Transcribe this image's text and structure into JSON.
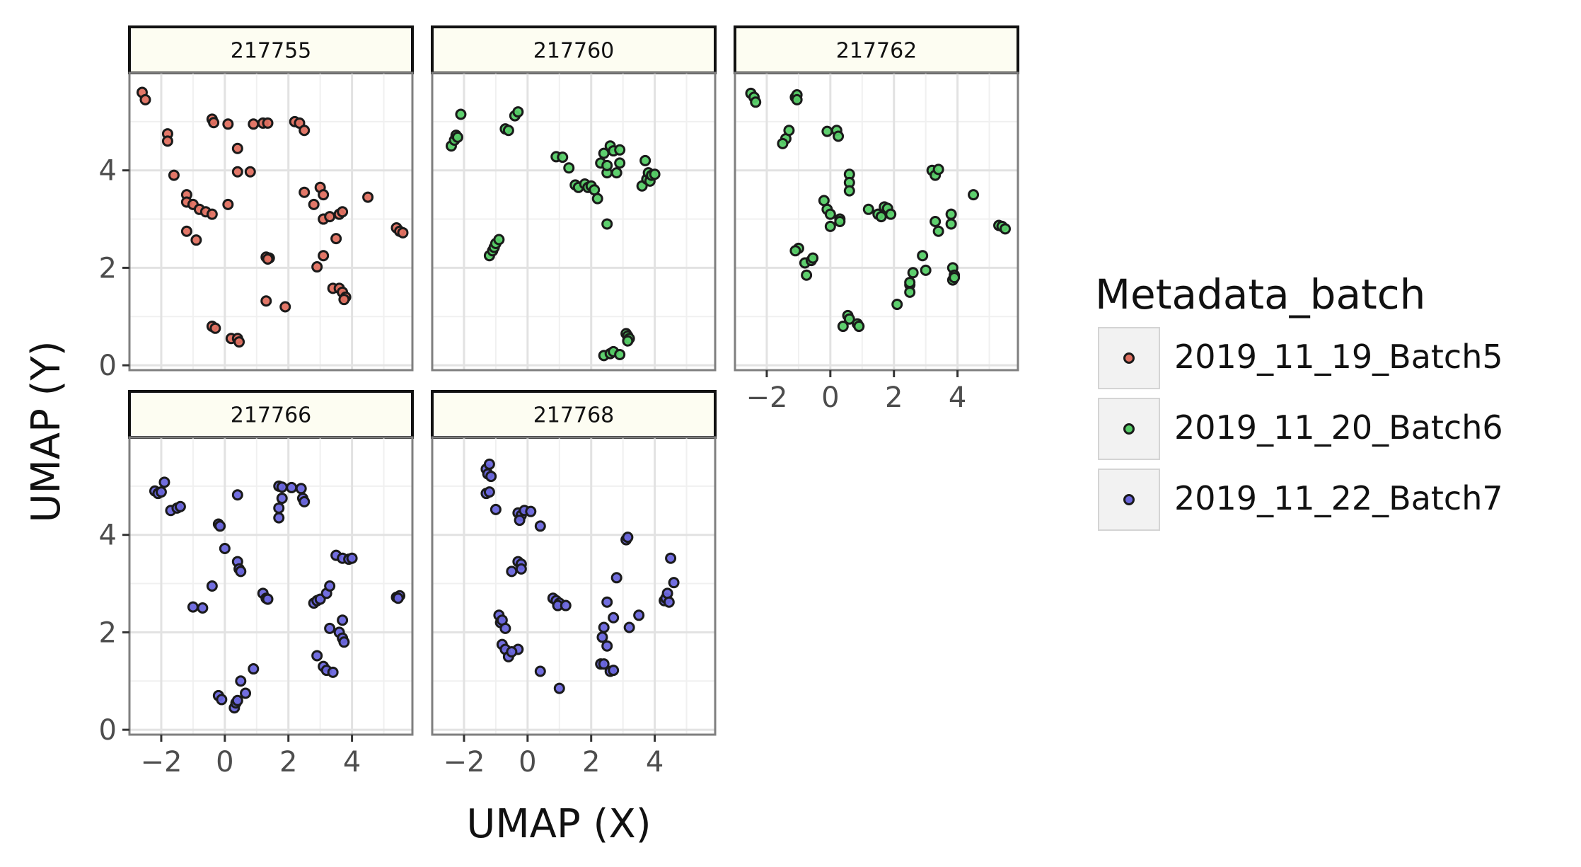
{
  "chart_data": {
    "type": "scatter",
    "xlabel": "UMAP (X)",
    "ylabel": "UMAP (Y)",
    "xlim": [
      -3.0,
      5.9
    ],
    "ylim": [
      -0.1,
      6.0
    ],
    "x_ticks": [
      -2,
      0,
      2,
      4
    ],
    "y_ticks": [
      0,
      2,
      4
    ],
    "x_tick_labels": [
      "−2",
      "0",
      "2",
      "4"
    ],
    "y_tick_labels": [
      "0",
      "2",
      "4"
    ],
    "grid": true,
    "legend_position": "right",
    "legend": {
      "title": "Metadata_batch",
      "entries": [
        {
          "label": "2019_11_19_Batch5",
          "color": "#e07060"
        },
        {
          "label": "2019_11_20_Batch6",
          "color": "#55cc66"
        },
        {
          "label": "2019_11_22_Batch7",
          "color": "#6a66dd"
        }
      ]
    },
    "panels": [
      {
        "title": "217755",
        "batch": "2019_11_19_Batch5",
        "color": "#e07060",
        "points": [
          [
            -2.6,
            5.6
          ],
          [
            -2.5,
            5.45
          ],
          [
            -1.8,
            4.75
          ],
          [
            -1.8,
            4.6
          ],
          [
            -1.6,
            3.9
          ],
          [
            -1.2,
            3.5
          ],
          [
            -1.2,
            3.35
          ],
          [
            -1.0,
            3.3
          ],
          [
            -0.8,
            3.2
          ],
          [
            -0.6,
            3.15
          ],
          [
            -0.4,
            3.1
          ],
          [
            -0.4,
            5.05
          ],
          [
            -0.35,
            4.98
          ],
          [
            0.1,
            3.3
          ],
          [
            0.1,
            4.95
          ],
          [
            0.4,
            4.45
          ],
          [
            0.4,
            3.97
          ],
          [
            0.8,
            3.97
          ],
          [
            0.9,
            4.95
          ],
          [
            1.2,
            4.97
          ],
          [
            1.35,
            4.97
          ],
          [
            2.2,
            5.0
          ],
          [
            2.35,
            4.97
          ],
          [
            2.5,
            4.82
          ],
          [
            2.5,
            3.55
          ],
          [
            2.8,
            3.3
          ],
          [
            3.0,
            3.65
          ],
          [
            3.1,
            3.5
          ],
          [
            3.1,
            3.0
          ],
          [
            3.3,
            3.05
          ],
          [
            3.6,
            3.1
          ],
          [
            3.7,
            3.15
          ],
          [
            4.5,
            3.45
          ],
          [
            5.4,
            2.82
          ],
          [
            5.5,
            2.75
          ],
          [
            5.6,
            2.72
          ],
          [
            -1.2,
            2.75
          ],
          [
            -0.9,
            2.57
          ],
          [
            1.3,
            2.22
          ],
          [
            1.4,
            2.2
          ],
          [
            1.35,
            2.18
          ],
          [
            1.3,
            1.32
          ],
          [
            1.9,
            1.2
          ],
          [
            2.9,
            2.02
          ],
          [
            3.1,
            2.25
          ],
          [
            3.5,
            2.6
          ],
          [
            3.4,
            1.58
          ],
          [
            3.6,
            1.58
          ],
          [
            3.7,
            1.5
          ],
          [
            3.8,
            1.4
          ],
          [
            3.75,
            1.35
          ],
          [
            -0.4,
            0.8
          ],
          [
            -0.3,
            0.76
          ],
          [
            0.2,
            0.55
          ],
          [
            0.4,
            0.55
          ],
          [
            0.45,
            0.48
          ]
        ]
      },
      {
        "title": "217760",
        "batch": "2019_11_20_Batch6",
        "color": "#55cc66",
        "points": [
          [
            -2.4,
            4.5
          ],
          [
            -2.3,
            4.62
          ],
          [
            -2.25,
            4.72
          ],
          [
            -2.2,
            4.68
          ],
          [
            -2.1,
            5.15
          ],
          [
            -1.2,
            2.25
          ],
          [
            -1.1,
            2.35
          ],
          [
            -1.05,
            2.42
          ],
          [
            -1.0,
            2.5
          ],
          [
            -0.9,
            2.58
          ],
          [
            -0.7,
            4.85
          ],
          [
            -0.6,
            4.82
          ],
          [
            -0.4,
            5.12
          ],
          [
            -0.3,
            5.2
          ],
          [
            0.9,
            4.28
          ],
          [
            1.1,
            4.27
          ],
          [
            1.3,
            4.05
          ],
          [
            1.5,
            3.7
          ],
          [
            1.6,
            3.65
          ],
          [
            1.8,
            3.72
          ],
          [
            1.9,
            3.65
          ],
          [
            2.0,
            3.68
          ],
          [
            2.1,
            3.6
          ],
          [
            2.2,
            3.42
          ],
          [
            2.3,
            4.15
          ],
          [
            2.4,
            4.35
          ],
          [
            2.5,
            3.95
          ],
          [
            2.5,
            4.1
          ],
          [
            2.6,
            4.5
          ],
          [
            2.7,
            4.4
          ],
          [
            2.8,
            3.95
          ],
          [
            2.9,
            4.15
          ],
          [
            2.9,
            4.42
          ],
          [
            2.5,
            2.9
          ],
          [
            3.6,
            3.68
          ],
          [
            3.7,
            4.2
          ],
          [
            3.75,
            3.82
          ],
          [
            3.8,
            3.95
          ],
          [
            3.85,
            3.78
          ],
          [
            3.9,
            3.9
          ],
          [
            4.0,
            3.92
          ],
          [
            2.4,
            0.2
          ],
          [
            2.6,
            0.24
          ],
          [
            2.7,
            0.28
          ],
          [
            2.9,
            0.22
          ],
          [
            3.1,
            0.65
          ],
          [
            3.15,
            0.6
          ],
          [
            3.2,
            0.55
          ],
          [
            3.15,
            0.5
          ]
        ]
      },
      {
        "title": "217762",
        "batch": "2019_11_20_Batch6",
        "color": "#55cc66",
        "points": [
          [
            -2.5,
            5.58
          ],
          [
            -2.4,
            5.5
          ],
          [
            -2.35,
            5.4
          ],
          [
            -1.4,
            4.65
          ],
          [
            -1.5,
            4.55
          ],
          [
            -1.3,
            4.82
          ],
          [
            -1.1,
            5.5
          ],
          [
            -1.05,
            5.55
          ],
          [
            -1.05,
            5.45
          ],
          [
            -0.1,
            4.8
          ],
          [
            0.2,
            4.82
          ],
          [
            0.25,
            4.7
          ],
          [
            -0.2,
            3.38
          ],
          [
            -0.1,
            3.2
          ],
          [
            0.0,
            3.1
          ],
          [
            0.3,
            3.0
          ],
          [
            0.3,
            2.95
          ],
          [
            0.0,
            2.85
          ],
          [
            0.6,
            3.92
          ],
          [
            0.6,
            3.75
          ],
          [
            0.6,
            3.58
          ],
          [
            -1.0,
            2.4
          ],
          [
            -1.1,
            2.35
          ],
          [
            -0.8,
            2.1
          ],
          [
            -0.6,
            2.15
          ],
          [
            -0.55,
            2.2
          ],
          [
            -0.75,
            1.85
          ],
          [
            0.4,
            0.8
          ],
          [
            0.55,
            1.02
          ],
          [
            0.6,
            0.95
          ],
          [
            0.85,
            0.85
          ],
          [
            0.9,
            0.8
          ],
          [
            1.2,
            3.2
          ],
          [
            1.5,
            3.1
          ],
          [
            1.6,
            3.05
          ],
          [
            1.7,
            3.25
          ],
          [
            1.8,
            3.22
          ],
          [
            1.9,
            3.1
          ],
          [
            2.1,
            1.25
          ],
          [
            2.5,
            1.65
          ],
          [
            2.5,
            1.7
          ],
          [
            2.5,
            1.5
          ],
          [
            2.6,
            1.9
          ],
          [
            2.9,
            2.25
          ],
          [
            3.0,
            1.95
          ],
          [
            3.2,
            4.0
          ],
          [
            3.3,
            3.9
          ],
          [
            3.4,
            4.02
          ],
          [
            3.3,
            2.95
          ],
          [
            3.4,
            2.75
          ],
          [
            3.8,
            3.1
          ],
          [
            3.8,
            2.9
          ],
          [
            3.85,
            2.0
          ],
          [
            3.9,
            1.85
          ],
          [
            3.85,
            1.75
          ],
          [
            3.9,
            1.8
          ],
          [
            4.5,
            3.5
          ],
          [
            5.3,
            2.87
          ],
          [
            5.4,
            2.85
          ],
          [
            5.5,
            2.8
          ]
        ]
      },
      {
        "title": "217766",
        "batch": "2019_11_22_Batch7",
        "color": "#6a66dd",
        "points": [
          [
            -2.2,
            4.9
          ],
          [
            -2.1,
            4.85
          ],
          [
            -2.0,
            4.88
          ],
          [
            -1.9,
            5.08
          ],
          [
            -1.7,
            4.5
          ],
          [
            -1.5,
            4.55
          ],
          [
            -1.4,
            4.58
          ],
          [
            -0.2,
            4.22
          ],
          [
            -0.15,
            4.18
          ],
          [
            0.0,
            3.72
          ],
          [
            0.4,
            3.45
          ],
          [
            0.45,
            3.3
          ],
          [
            0.5,
            3.25
          ],
          [
            0.4,
            4.82
          ],
          [
            -0.4,
            2.95
          ],
          [
            -1.0,
            2.52
          ],
          [
            -0.7,
            2.5
          ],
          [
            1.2,
            2.8
          ],
          [
            1.3,
            2.7
          ],
          [
            1.35,
            2.68
          ],
          [
            1.7,
            5.0
          ],
          [
            1.8,
            4.98
          ],
          [
            1.7,
            4.55
          ],
          [
            1.7,
            4.35
          ],
          [
            1.8,
            4.75
          ],
          [
            2.1,
            4.97
          ],
          [
            2.4,
            4.95
          ],
          [
            2.45,
            4.75
          ],
          [
            2.5,
            4.68
          ],
          [
            2.8,
            2.6
          ],
          [
            2.9,
            2.65
          ],
          [
            3.0,
            2.68
          ],
          [
            3.2,
            2.8
          ],
          [
            3.3,
            2.95
          ],
          [
            3.3,
            2.08
          ],
          [
            3.5,
            3.58
          ],
          [
            3.7,
            3.52
          ],
          [
            3.9,
            3.5
          ],
          [
            4.0,
            3.52
          ],
          [
            3.7,
            2.25
          ],
          [
            3.6,
            2.0
          ],
          [
            3.7,
            1.88
          ],
          [
            3.75,
            1.8
          ],
          [
            2.9,
            1.52
          ],
          [
            3.1,
            1.3
          ],
          [
            3.2,
            1.22
          ],
          [
            3.4,
            1.18
          ],
          [
            5.4,
            2.72
          ],
          [
            5.5,
            2.75
          ],
          [
            5.45,
            2.7
          ],
          [
            -0.2,
            0.7
          ],
          [
            -0.1,
            0.62
          ],
          [
            0.3,
            0.45
          ],
          [
            0.35,
            0.55
          ],
          [
            0.4,
            0.6
          ],
          [
            0.5,
            1.0
          ],
          [
            0.65,
            0.75
          ],
          [
            0.9,
            1.25
          ]
        ]
      },
      {
        "title": "217768",
        "batch": "2019_11_22_Batch7",
        "color": "#6a66dd",
        "points": [
          [
            -1.3,
            5.35
          ],
          [
            -1.25,
            5.25
          ],
          [
            -1.2,
            5.45
          ],
          [
            -1.15,
            5.2
          ],
          [
            -1.3,
            4.85
          ],
          [
            -1.2,
            4.88
          ],
          [
            -1.0,
            4.52
          ],
          [
            -0.3,
            4.45
          ],
          [
            -0.2,
            4.4
          ],
          [
            -0.25,
            4.3
          ],
          [
            -0.1,
            4.5
          ],
          [
            0.1,
            4.48
          ],
          [
            0.4,
            4.18
          ],
          [
            -0.3,
            3.45
          ],
          [
            -0.2,
            3.4
          ],
          [
            -0.5,
            3.25
          ],
          [
            -0.2,
            3.3
          ],
          [
            -0.9,
            2.35
          ],
          [
            -0.85,
            2.2
          ],
          [
            -0.8,
            2.25
          ],
          [
            -0.7,
            2.08
          ],
          [
            -0.8,
            1.75
          ],
          [
            -0.7,
            1.65
          ],
          [
            -0.6,
            1.5
          ],
          [
            -0.3,
            1.65
          ],
          [
            -0.5,
            1.6
          ],
          [
            0.4,
            1.2
          ],
          [
            0.8,
            2.7
          ],
          [
            0.9,
            2.65
          ],
          [
            1.0,
            2.6
          ],
          [
            0.95,
            2.55
          ],
          [
            1.2,
            2.55
          ],
          [
            1.0,
            0.85
          ],
          [
            2.3,
            1.35
          ],
          [
            2.4,
            1.35
          ],
          [
            2.35,
            1.9
          ],
          [
            2.4,
            2.1
          ],
          [
            2.5,
            1.72
          ],
          [
            2.5,
            2.62
          ],
          [
            2.7,
            2.3
          ],
          [
            2.6,
            1.2
          ],
          [
            2.7,
            1.22
          ],
          [
            2.8,
            3.12
          ],
          [
            3.1,
            3.9
          ],
          [
            3.15,
            3.95
          ],
          [
            3.2,
            2.1
          ],
          [
            3.5,
            2.35
          ],
          [
            4.3,
            2.65
          ],
          [
            4.35,
            2.7
          ],
          [
            4.4,
            2.8
          ],
          [
            4.5,
            3.52
          ],
          [
            4.6,
            3.02
          ],
          [
            4.45,
            2.62
          ]
        ]
      }
    ]
  }
}
